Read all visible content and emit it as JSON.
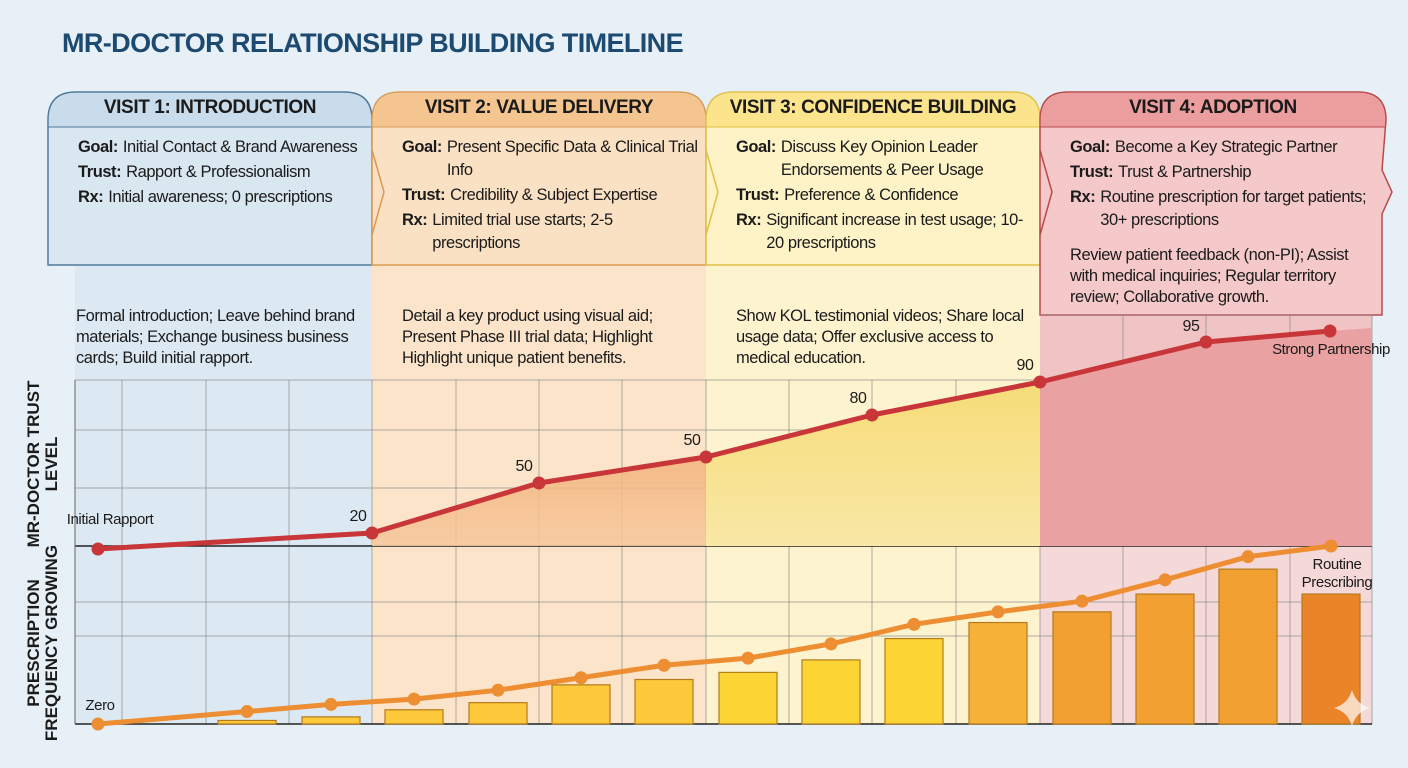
{
  "title": "MR-DOCTOR RELATIONSHIP BUILDING TIMELINE",
  "field_labels": {
    "goal": "Goal:",
    "trust": "Trust:",
    "rx": "Rx:"
  },
  "visits": [
    {
      "title": "VISIT 1: INTRODUCTION",
      "goal": "Initial Contact & Brand Awareness",
      "trust": "Rapport & Professionalism",
      "rx": "Initial awareness; 0 prescriptions",
      "activities": "Formal introduction; Leave behind brand materials; Exchange business business cards; Build initial rapport.",
      "header_color": "#c8dcec",
      "body_color": "#d9e7f1",
      "border_color": "#4f7a9a"
    },
    {
      "title": "VISIT 2: VALUE DELIVERY",
      "goal": "Present Specific Data & Clinical Trial Info",
      "trust": "Credibility & Subject Expertise",
      "rx": "Limited trial use starts; 2-5 prescriptions",
      "activities": "Detail a key product using visual aid; Present Phase III trial data; Highlight Highlight unique patient benefits.",
      "header_color": "#f5c58f",
      "body_color": "#fbe1c4",
      "border_color": "#d99a55"
    },
    {
      "title": "VISIT 3: CONFIDENCE BUILDING",
      "goal": "Discuss Key Opinion Leader Endorsements & Peer Usage",
      "trust": "Preference & Confidence",
      "rx": "Significant increase in test usage; 10-20 prescriptions",
      "activities": "Show KOL testimonial videos; Share local usage data; Offer exclusive access to medical education.",
      "header_color": "#fbe48c",
      "body_color": "#fdf3c6",
      "border_color": "#e0bf45"
    },
    {
      "title": "VISIT 4: ADOPTION",
      "goal": "Become a Key Strategic Partner",
      "trust": "Trust & Partnership",
      "rx": "Routine prescription for target patients; 30+ prescriptions",
      "activities": "Review patient feedback (non-PI); Assist with medical inquiries; Regular territory review; Collaborative growth.",
      "header_color": "#ec9d9d",
      "body_color": "#f5c9c9",
      "border_color": "#b94a4a"
    }
  ],
  "chart_data": {
    "type": "line+bar",
    "grid": true,
    "panels": [
      {
        "type": "line",
        "ylabel": "MR-DOCTOR TRUST LEVEL",
        "color": "#c8363a",
        "values": [
          null,
          20,
          50,
          50,
          80,
          90,
          95,
          null
        ],
        "point_labels": [
          "Initial Rapport",
          "20",
          "50",
          "50",
          "80",
          "90",
          "95",
          "Strong Partnership"
        ]
      },
      {
        "type": "bar+line",
        "ylabel": "PRESCRIPTION FREQUENCY GROWING",
        "bar_values": [
          2,
          4,
          8,
          12,
          22,
          25,
          29,
          36,
          48,
          57,
          63,
          73,
          87,
          73
        ],
        "line_values": [
          0,
          7,
          11,
          14,
          19,
          26,
          33,
          37,
          45,
          56,
          63,
          69,
          81,
          94,
          100
        ],
        "line_color": "#ee8e32",
        "bar_colors": [
          "#fcd535",
          "#fbc93a",
          "#f7b23a",
          "#f3a033",
          "#ea8428"
        ],
        "start_label": "Zero",
        "end_label": "Routine Prescribing"
      }
    ]
  }
}
